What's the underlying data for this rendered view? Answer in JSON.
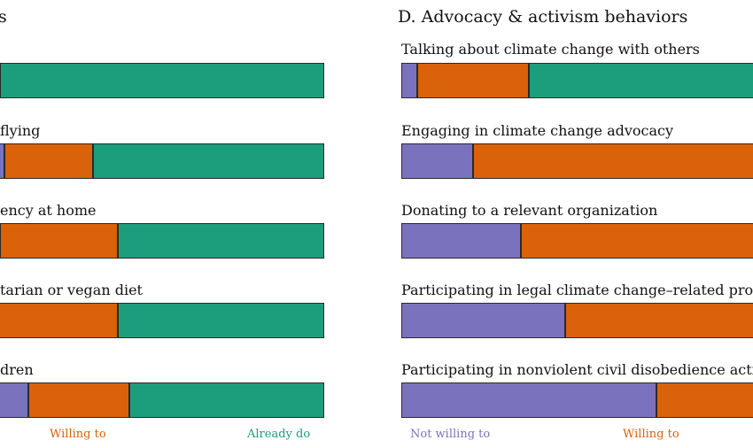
{
  "colors": {
    "not_willing": "#7b72bd",
    "willing": "#d9620a",
    "already": "#1c9e7c"
  },
  "chart_data": [
    {
      "type": "bar",
      "orientation": "horizontal",
      "stacked": true,
      "title": "s",
      "categories": [
        "",
        "flying",
        "ency at home",
        "tarian or vegan diet",
        "dren"
      ],
      "series": [
        {
          "name": "Willing to",
          "values": [
            0.0,
            0.22,
            0.29,
            0.39,
            0.25
          ]
        },
        {
          "name": "Already do",
          "values": [
            0.8,
            0.57,
            0.51,
            0.51,
            0.48
          ]
        }
      ],
      "legend": [
        "Willing to",
        "Already do"
      ],
      "legend_position": "bottom"
    },
    {
      "type": "bar",
      "orientation": "horizontal",
      "stacked": true,
      "title": "D. Advocacy & activism behaviors",
      "categories": [
        "Talking about climate change with others",
        "Engaging in climate change advocacy",
        "Donating to a relevant organization",
        "Participating in legal climate change–related prote",
        "Participating in nonviolent civil disobedience actio"
      ],
      "series": [
        {
          "name": "Not willing to",
          "values": [
            0.04,
            0.18,
            0.3,
            0.41,
            0.64
          ]
        },
        {
          "name": "Willing to",
          "values": [
            0.28,
            0.82,
            0.67,
            0.59,
            0.36
          ]
        },
        {
          "name": "Already do",
          "values": [
            0.68,
            0.0,
            0.03,
            0.0,
            0.0
          ]
        }
      ],
      "legend": [
        "Not willing to",
        "Willing to"
      ],
      "legend_position": "bottom"
    }
  ]
}
